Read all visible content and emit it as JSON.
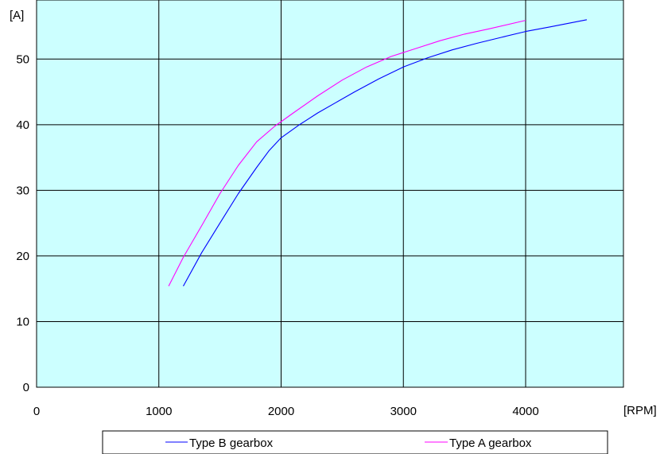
{
  "chart_data": {
    "type": "line",
    "title": "",
    "xlabel": "[RPM]",
    "ylabel": "[A]",
    "xlim": [
      0,
      4800
    ],
    "ylim": [
      0,
      59
    ],
    "xticks": [
      0,
      1000,
      2000,
      3000,
      4000
    ],
    "yticks": [
      0,
      10,
      20,
      30,
      40,
      50
    ],
    "grid": true,
    "plot_background": "#ccffff",
    "legend_position": "bottom",
    "series": [
      {
        "name": "Type B gearbox",
        "color": "#0000ff",
        "x": [
          1200,
          1350,
          1500,
          1650,
          1800,
          1900,
          2000,
          2150,
          2300,
          2450,
          2600,
          2800,
          3000,
          3200,
          3400,
          3600,
          3800,
          4000,
          4200,
          4500
        ],
        "y": [
          15.4,
          20.5,
          25.0,
          29.5,
          33.5,
          36.0,
          38.0,
          40.0,
          41.8,
          43.4,
          45.0,
          47.0,
          48.8,
          50.2,
          51.4,
          52.4,
          53.3,
          54.2,
          54.9,
          56.0
        ]
      },
      {
        "name": "Type A gearbox",
        "color": "#ff00ff",
        "x": [
          1080,
          1200,
          1350,
          1500,
          1650,
          1800,
          1950,
          2100,
          2300,
          2500,
          2700,
          2900,
          3100,
          3300,
          3500,
          3700,
          4000
        ],
        "y": [
          15.4,
          19.8,
          24.6,
          29.5,
          33.8,
          37.4,
          39.8,
          41.8,
          44.4,
          46.8,
          48.8,
          50.4,
          51.6,
          52.8,
          53.8,
          54.6,
          55.9
        ]
      }
    ]
  }
}
